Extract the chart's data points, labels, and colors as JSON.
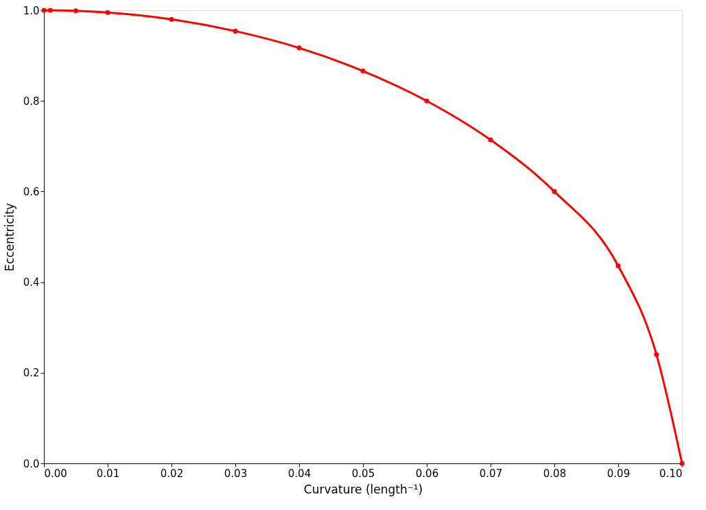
{
  "chart_data": {
    "type": "line",
    "xlabel": "Curvature (length⁻¹)",
    "ylabel": "Eccentricity",
    "x": [
      0,
      0.001,
      0.005,
      0.01,
      0.02,
      0.03,
      0.04,
      0.05,
      0.06,
      0.07,
      0.08,
      0.09,
      0.096,
      0.1
    ],
    "series": [
      {
        "color": "#ff0000",
        "values": [
          1.0,
          1.0,
          0.999,
          0.995,
          0.98,
          0.954,
          0.917,
          0.866,
          0.8,
          0.714,
          0.6,
          0.436,
          0.24,
          0.0
        ]
      }
    ],
    "xlim": [
      0,
      0.1
    ],
    "ylim": [
      0,
      1.0
    ],
    "xticks": [
      {
        "value": 0,
        "label": "0.00"
      },
      {
        "value": 0.01,
        "label": "0.01"
      },
      {
        "value": 0.02,
        "label": "0.02"
      },
      {
        "value": 0.03,
        "label": "0.03"
      },
      {
        "value": 0.04,
        "label": "0.04"
      },
      {
        "value": 0.05,
        "label": "0.05"
      },
      {
        "value": 0.06,
        "label": "0.06"
      },
      {
        "value": 0.07,
        "label": "0.07"
      },
      {
        "value": 0.08,
        "label": "0.08"
      },
      {
        "value": 0.09,
        "label": "0.09"
      },
      {
        "value": 0.1,
        "label": "0.10"
      }
    ],
    "yticks": [
      {
        "value": 0,
        "label": "0.0"
      },
      0.2,
      0.4,
      0.6,
      0.8,
      {
        "value": 1.0,
        "label": "1.0"
      }
    ],
    "grid": false,
    "marker": "circle",
    "line_style": "solid"
  }
}
